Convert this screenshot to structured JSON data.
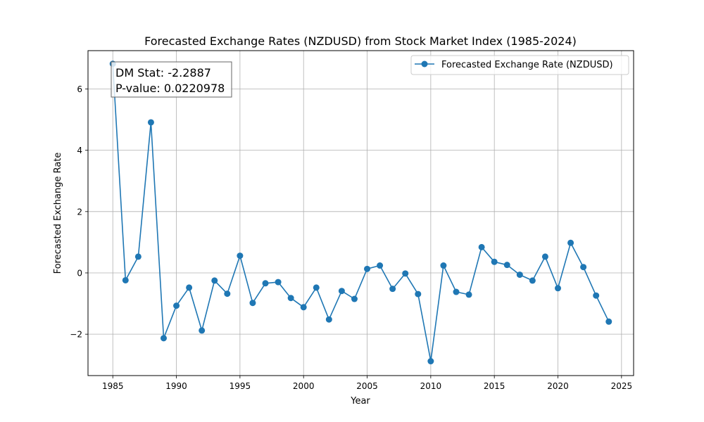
{
  "chart_data": {
    "type": "line",
    "title": "Forecasted Exchange Rates (NZDUSD) from Stock Market Index (1985-2024)",
    "xlabel": "Year",
    "ylabel": "Forecasted Exchange Rate",
    "xlim": [
      1983.05,
      2025.95
    ],
    "ylim": [
      -3.35,
      7.25
    ],
    "xticks": [
      1985,
      1990,
      1995,
      2000,
      2005,
      2010,
      2015,
      2020,
      2025
    ],
    "yticks": [
      -2,
      0,
      2,
      4,
      6
    ],
    "ytick_labels": [
      "−2",
      "0",
      "2",
      "4",
      "6"
    ],
    "grid": true,
    "legend_position": "top-right",
    "series": [
      {
        "name": "Forecasted Exchange Rate (NZDUSD)",
        "color": "#1f77b4",
        "x": [
          1985,
          1986,
          1987,
          1988,
          1989,
          1990,
          1991,
          1992,
          1993,
          1994,
          1995,
          1996,
          1997,
          1998,
          1999,
          2000,
          2001,
          2002,
          2003,
          2004,
          2005,
          2006,
          2007,
          2008,
          2009,
          2010,
          2011,
          2012,
          2013,
          2014,
          2015,
          2016,
          2017,
          2018,
          2019,
          2020,
          2021,
          2022,
          2023,
          2024
        ],
        "y": [
          6.82,
          -0.24,
          0.53,
          4.91,
          -2.13,
          -1.07,
          -0.48,
          -1.88,
          -0.25,
          -0.68,
          0.56,
          -0.98,
          -0.34,
          -0.3,
          -0.82,
          -1.12,
          -0.48,
          -1.52,
          -0.59,
          -0.85,
          0.13,
          0.24,
          -0.52,
          -0.02,
          -0.69,
          -2.88,
          0.24,
          -0.62,
          -0.71,
          0.84,
          0.36,
          0.26,
          -0.06,
          -0.25,
          0.53,
          -0.5,
          0.98,
          0.19,
          -0.74,
          -1.59
        ]
      }
    ],
    "annotation": {
      "lines": [
        "DM Stat: -2.2887",
        "P-value: 0.0220978"
      ],
      "position": "top-left"
    }
  }
}
